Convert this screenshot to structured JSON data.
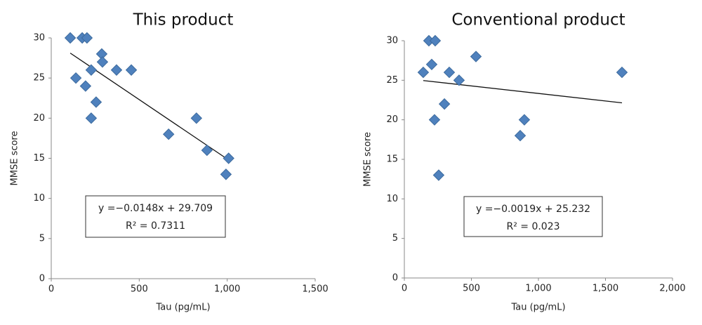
{
  "chart_data": [
    {
      "type": "scatter",
      "title": "This product",
      "x_label": "Tau (pg/mL)",
      "y_label": "MMSE score",
      "color": "#4f81bd",
      "x": [
        108,
        176,
        203,
        140,
        195,
        227,
        287,
        291,
        255,
        227,
        371,
        455,
        667,
        825,
        885,
        1008,
        993
      ],
      "values": [
        30,
        30,
        30,
        25,
        24,
        26,
        28,
        27,
        22,
        20,
        26,
        26,
        18,
        20,
        16,
        15,
        13
      ],
      "xlim": [
        0,
        1500
      ],
      "xticks": [
        0,
        500,
        {
          "value": 1000,
          "label": "1,000"
        },
        {
          "value": 1500,
          "label": "1,500"
        }
      ],
      "ylim": [
        0,
        30
      ],
      "yticks": [
        0,
        5,
        10,
        15,
        20,
        25,
        30
      ],
      "trendline": {
        "slope": -0.0148,
        "intercept": 29.709,
        "equation": "y =−0.0148x + 29.709",
        "r2": "R² = 0.7311"
      }
    },
    {
      "type": "scatter",
      "title": "Conventional product",
      "x_label": "Tau (pg/mL)",
      "y_label": "MMSE score",
      "color": "#4f81bd",
      "x": [
        141,
        183,
        230,
        204,
        225,
        256,
        299,
        335,
        408,
        534,
        864,
        895,
        1623
      ],
      "values": [
        26,
        30,
        30,
        27,
        20,
        13,
        22,
        26,
        25,
        28,
        18,
        20,
        26
      ],
      "xlim": [
        0,
        2000
      ],
      "xticks": [
        0,
        500,
        {
          "value": 1000,
          "label": "1,000"
        },
        {
          "value": 1500,
          "label": "1,500"
        },
        {
          "value": 2000,
          "label": "2,000"
        }
      ],
      "ylim": [
        0,
        30
      ],
      "yticks": [
        0,
        5,
        10,
        15,
        20,
        25,
        30
      ],
      "trendline": {
        "slope": -0.0019,
        "intercept": 25.232,
        "equation": "y =−0.0019x + 25.232",
        "r2": "R² = 0.023"
      }
    }
  ]
}
